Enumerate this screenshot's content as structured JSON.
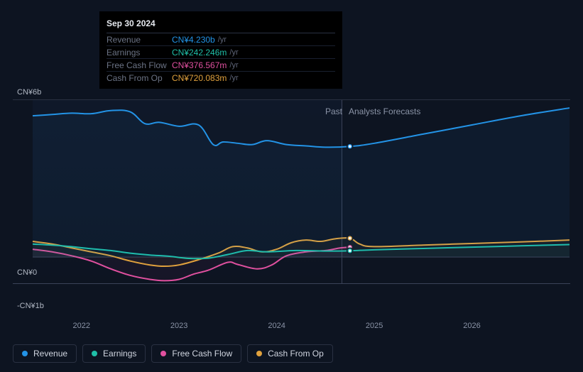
{
  "chart": {
    "background_color": "#0d1421",
    "grid_color": "#2a3142",
    "zero_line_color": "#3a4258",
    "text_color": "#8a93a6",
    "y_axis": {
      "top_label": "CN¥6b",
      "zero_label": "CN¥0",
      "bottom_label": "-CN¥1b",
      "min": -1000,
      "max": 6000,
      "zero": 0
    },
    "x_axis": {
      "min": 2021.5,
      "max": 2027.0,
      "ticks": [
        2022,
        2023,
        2024,
        2025,
        2026
      ],
      "tick_labels": [
        "2022",
        "2023",
        "2024",
        "2025",
        "2026"
      ]
    },
    "split": {
      "x": 2024.75,
      "past_label": "Past",
      "forecast_label": "Analysts Forecasts",
      "past_bg": "rgba(17,28,48,0.5)"
    },
    "series": {
      "revenue": {
        "label": "Revenue",
        "color": "#2393e6",
        "fill_opacity": 0.06,
        "line_width": 2,
        "data": [
          [
            2021.5,
            5400
          ],
          [
            2021.7,
            5450
          ],
          [
            2021.9,
            5500
          ],
          [
            2022.1,
            5480
          ],
          [
            2022.3,
            5600
          ],
          [
            2022.5,
            5550
          ],
          [
            2022.65,
            5100
          ],
          [
            2022.8,
            5150
          ],
          [
            2023.0,
            5000
          ],
          [
            2023.2,
            5050
          ],
          [
            2023.35,
            4300
          ],
          [
            2023.45,
            4400
          ],
          [
            2023.6,
            4350
          ],
          [
            2023.75,
            4300
          ],
          [
            2023.9,
            4450
          ],
          [
            2024.1,
            4300
          ],
          [
            2024.3,
            4250
          ],
          [
            2024.5,
            4200
          ],
          [
            2024.75,
            4230
          ],
          [
            2025.0,
            4350
          ],
          [
            2025.5,
            4700
          ],
          [
            2026.0,
            5050
          ],
          [
            2026.5,
            5400
          ],
          [
            2027.0,
            5700
          ]
        ],
        "marker_x": 2024.75,
        "marker_y": 4230
      },
      "earnings": {
        "label": "Earnings",
        "color": "#1fbfa8",
        "fill_opacity": 0.04,
        "line_width": 2,
        "data": [
          [
            2021.5,
            500
          ],
          [
            2021.8,
            430
          ],
          [
            2022.1,
            320
          ],
          [
            2022.3,
            250
          ],
          [
            2022.5,
            150
          ],
          [
            2022.7,
            80
          ],
          [
            2022.9,
            30
          ],
          [
            2023.1,
            -50
          ],
          [
            2023.3,
            -40
          ],
          [
            2023.5,
            100
          ],
          [
            2023.7,
            250
          ],
          [
            2023.9,
            200
          ],
          [
            2024.2,
            250
          ],
          [
            2024.5,
            230
          ],
          [
            2024.75,
            242
          ],
          [
            2025.0,
            280
          ],
          [
            2025.5,
            330
          ],
          [
            2026.0,
            380
          ],
          [
            2026.5,
            430
          ],
          [
            2027.0,
            480
          ]
        ],
        "marker_x": 2024.75,
        "marker_y": 242
      },
      "fcf": {
        "label": "Free Cash Flow",
        "color": "#e0509f",
        "fill_opacity": 0.05,
        "line_width": 2,
        "data": [
          [
            2021.5,
            300
          ],
          [
            2021.7,
            200
          ],
          [
            2021.9,
            50
          ],
          [
            2022.1,
            -150
          ],
          [
            2022.3,
            -450
          ],
          [
            2022.5,
            -700
          ],
          [
            2022.7,
            -850
          ],
          [
            2022.85,
            -900
          ],
          [
            2023.0,
            -850
          ],
          [
            2023.15,
            -650
          ],
          [
            2023.3,
            -500
          ],
          [
            2023.5,
            -200
          ],
          [
            2023.6,
            -280
          ],
          [
            2023.8,
            -450
          ],
          [
            2023.95,
            -300
          ],
          [
            2024.1,
            50
          ],
          [
            2024.3,
            200
          ],
          [
            2024.5,
            250
          ],
          [
            2024.65,
            350
          ],
          [
            2024.75,
            377
          ]
        ],
        "marker_x": 2024.75,
        "marker_y": 377
      },
      "cfo": {
        "label": "Cash From Op",
        "color": "#e0a13d",
        "fill_opacity": 0.04,
        "line_width": 2,
        "data": [
          [
            2021.5,
            600
          ],
          [
            2021.7,
            500
          ],
          [
            2021.9,
            350
          ],
          [
            2022.1,
            200
          ],
          [
            2022.3,
            50
          ],
          [
            2022.5,
            -150
          ],
          [
            2022.7,
            -300
          ],
          [
            2022.85,
            -350
          ],
          [
            2023.0,
            -300
          ],
          [
            2023.2,
            -100
          ],
          [
            2023.4,
            150
          ],
          [
            2023.55,
            400
          ],
          [
            2023.7,
            350
          ],
          [
            2023.85,
            200
          ],
          [
            2024.0,
            300
          ],
          [
            2024.15,
            550
          ],
          [
            2024.3,
            650
          ],
          [
            2024.45,
            600
          ],
          [
            2024.6,
            700
          ],
          [
            2024.75,
            720
          ],
          [
            2024.85,
            500
          ],
          [
            2025.0,
            400
          ],
          [
            2025.5,
            460
          ],
          [
            2026.0,
            520
          ],
          [
            2026.5,
            580
          ],
          [
            2027.0,
            650
          ]
        ],
        "marker_x": 2024.75,
        "marker_y": 720
      }
    }
  },
  "tooltip": {
    "date": "Sep 30 2024",
    "unit": "/yr",
    "rows": [
      {
        "label": "Revenue",
        "value": "CN¥4.230b",
        "color": "#2393e6"
      },
      {
        "label": "Earnings",
        "value": "CN¥242.246m",
        "color": "#1fbfa8"
      },
      {
        "label": "Free Cash Flow",
        "value": "CN¥376.567m",
        "color": "#e0509f"
      },
      {
        "label": "Cash From Op",
        "value": "CN¥720.083m",
        "color": "#e0a13d"
      }
    ]
  },
  "legend": [
    {
      "key": "revenue",
      "label": "Revenue",
      "color": "#2393e6"
    },
    {
      "key": "earnings",
      "label": "Earnings",
      "color": "#1fbfa8"
    },
    {
      "key": "fcf",
      "label": "Free Cash Flow",
      "color": "#e0509f"
    },
    {
      "key": "cfo",
      "label": "Cash From Op",
      "color": "#e0a13d"
    }
  ]
}
